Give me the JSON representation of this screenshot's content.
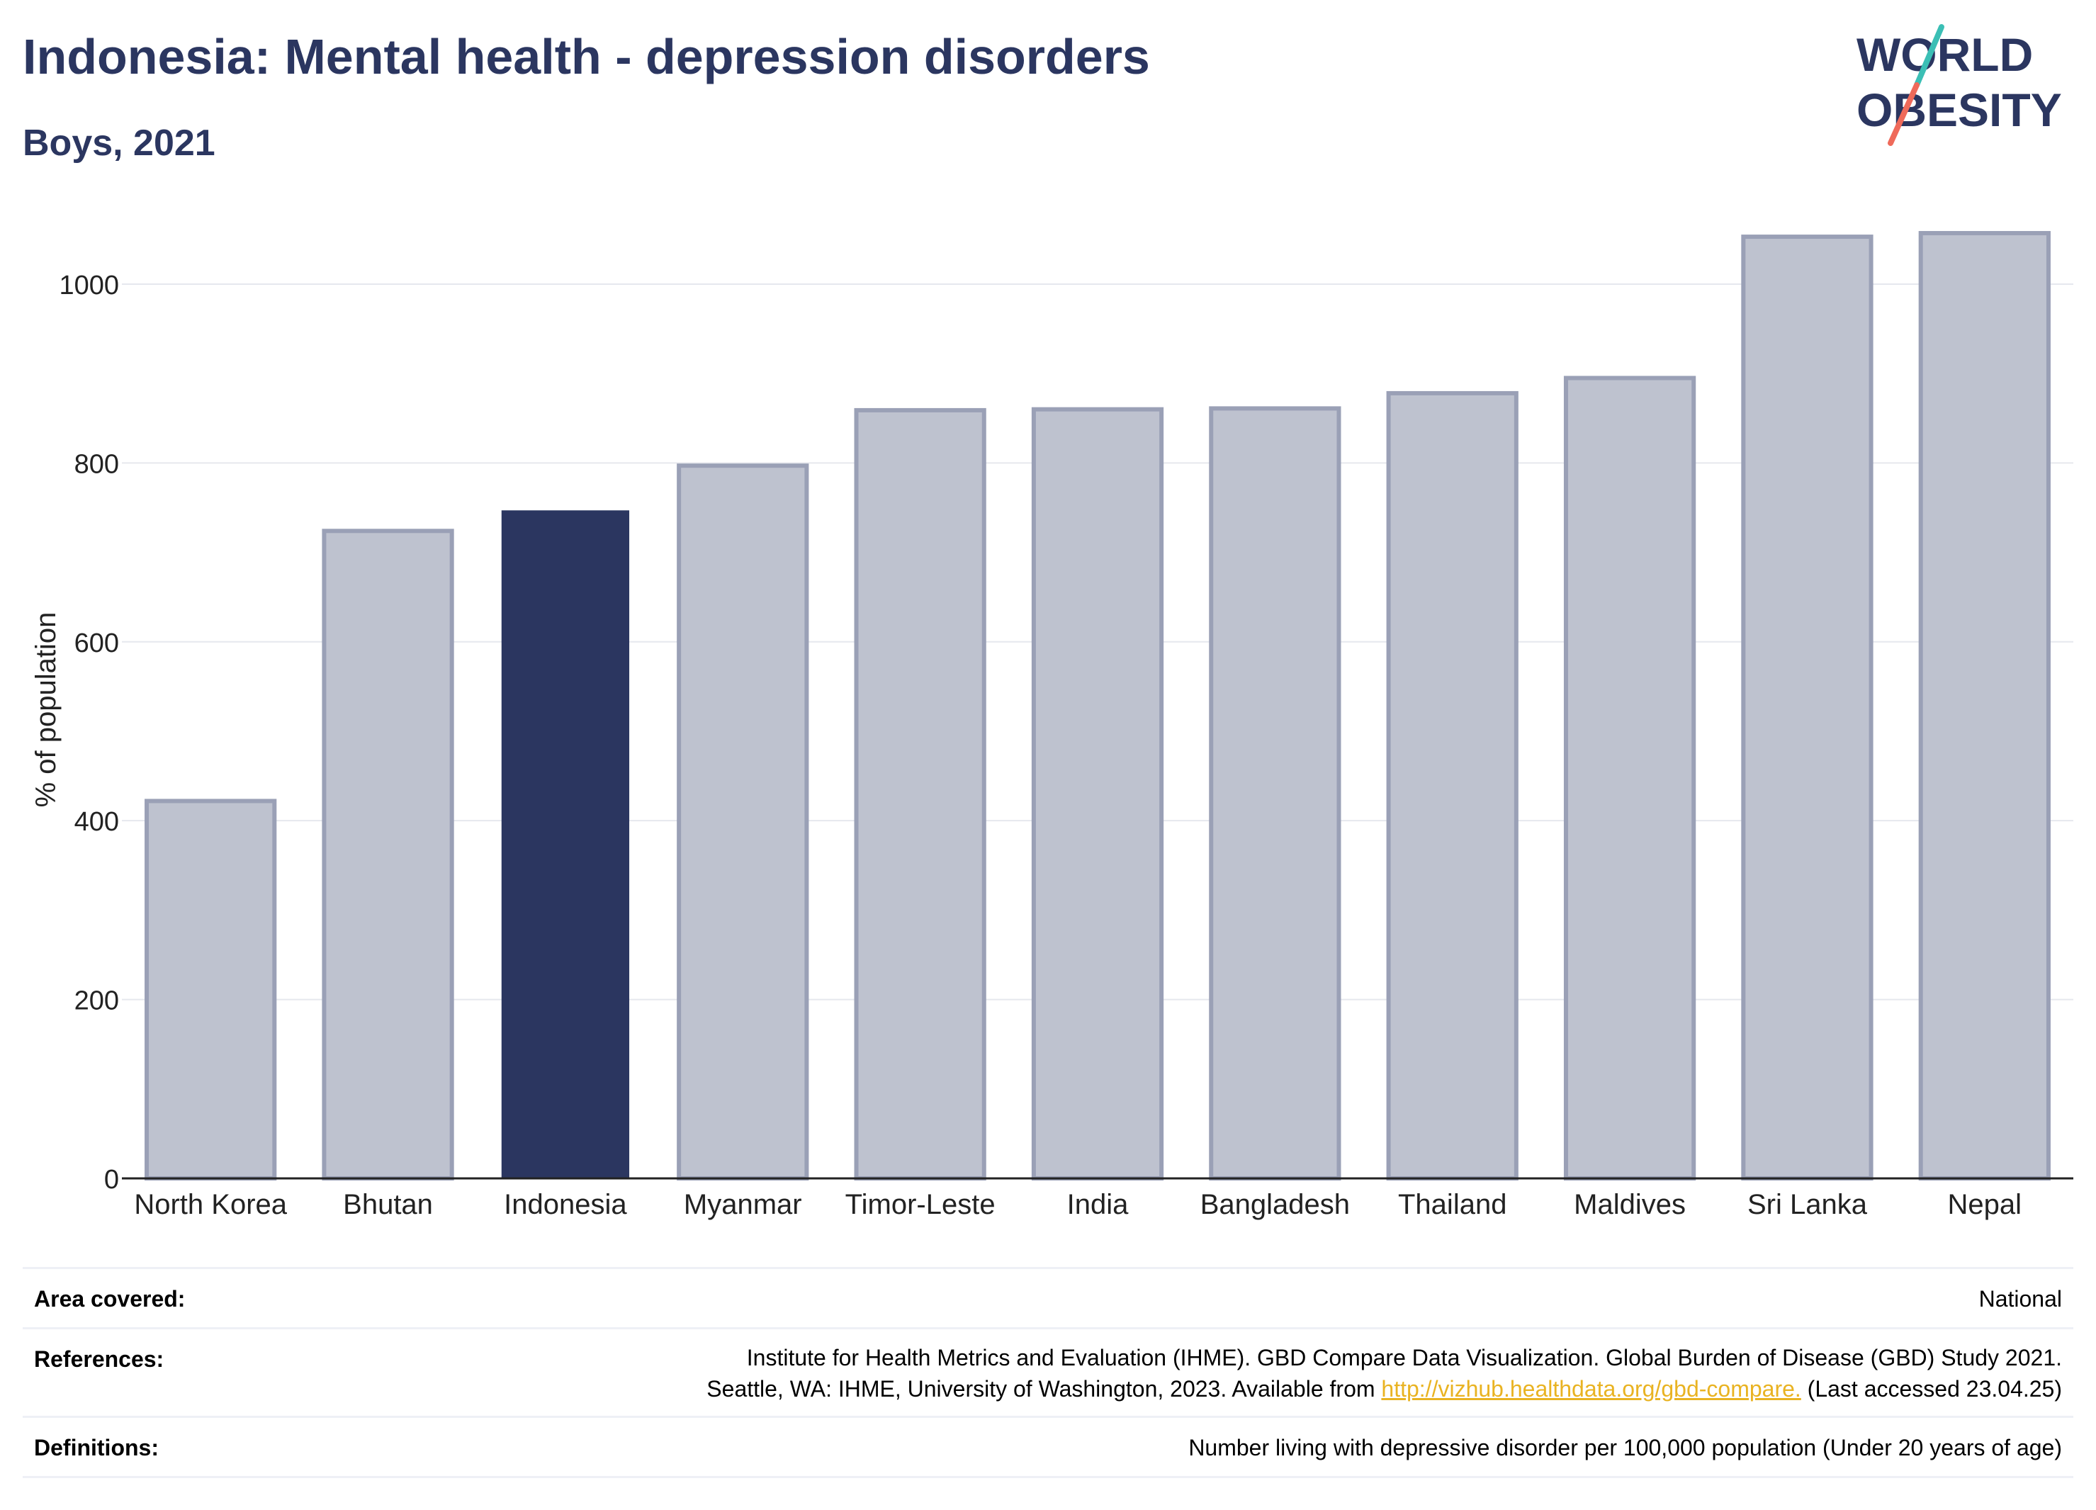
{
  "header": {
    "title": "Indonesia: Mental health - depression disorders",
    "subtitle": "Boys, 2021"
  },
  "logo": {
    "line1": "WORLD",
    "line2": "OBESITY",
    "colors": {
      "text": "#2b3660",
      "slash_teal": "#3bbfb5",
      "slash_coral": "#ef6a5a"
    }
  },
  "chart_data": {
    "type": "bar",
    "title": "Indonesia: Mental health - depression disorders",
    "subtitle": "Boys, 2021",
    "ylabel": "% of population",
    "xlabel": "",
    "categories": [
      "North Korea",
      "Bhutan",
      "Indonesia",
      "Myanmar",
      "Timor-Leste",
      "India",
      "Bangladesh",
      "Thailand",
      "Maldives",
      "Sri Lanka",
      "Nepal"
    ],
    "values": [
      422,
      724,
      747,
      797,
      859,
      860,
      861,
      878,
      895,
      1053,
      1057
    ],
    "highlight": "Indonesia",
    "ylim": [
      0,
      1080
    ],
    "yticks": [
      0,
      200,
      400,
      600,
      800,
      1000
    ],
    "grid": true,
    "colors": {
      "highlight": "#2b3660",
      "other_fill": "#bec2cf",
      "other_stroke": "#9aa0b6",
      "grid": "#e6e8ee",
      "axis": "#222222"
    }
  },
  "footer": {
    "rows": [
      {
        "label": "Area covered:",
        "lines": [
          "National"
        ]
      },
      {
        "label": "References:",
        "lines": [
          "Institute for Health Metrics and Evaluation (IHME). GBD Compare Data Visualization. Global Burden of Disease (GBD) Study 2021.",
          "Seattle, WA: IHME, University of Washington, 2023. Available from"
        ],
        "link": "http://vizhub.healthdata.org/gbd-compare.",
        "after_link": "(Last accessed 23.04.25)"
      },
      {
        "label": "Definitions:",
        "lines": [
          "Number living with depressive disorder per 100,000 population (Under 20 years of age)"
        ]
      }
    ]
  }
}
